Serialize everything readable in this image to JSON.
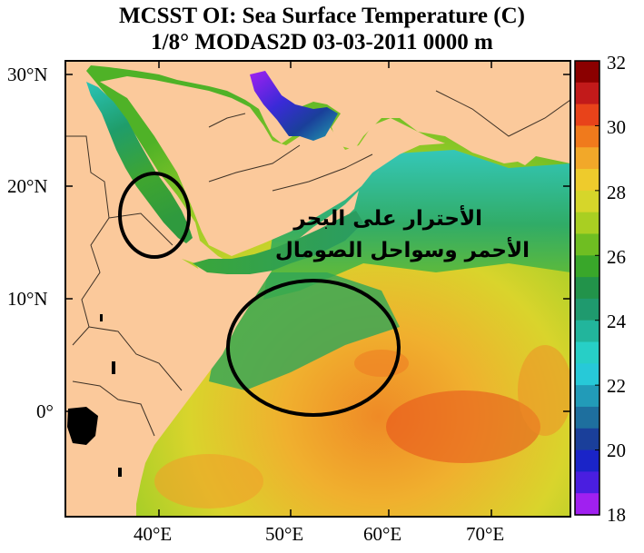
{
  "title": {
    "line1": "MCSST OI:  Sea Surface Temperature (C)",
    "line2": "1/8° MODAS2D 03-03-2011 0000 m"
  },
  "map": {
    "lat_labels": [
      "30°N",
      "20°N",
      "10°N",
      "0°"
    ],
    "lon_labels": [
      "40°E",
      "50°E",
      "60°E",
      "70°E"
    ]
  },
  "annotation": {
    "line1": "الأحترار على البحر",
    "line2": "الأحمر وسواحل الصومال"
  },
  "colorbar": {
    "ticks": [
      "32",
      "30",
      "28",
      "26",
      "24",
      "22",
      "20",
      "18"
    ],
    "min": 18,
    "max": 32,
    "colors": [
      "#8b0000",
      "#c21a1a",
      "#e8431a",
      "#f07a1c",
      "#f2a829",
      "#eecb2c",
      "#d6d62a",
      "#a9cf22",
      "#6fbe22",
      "#39a72a",
      "#22934a",
      "#1f9a6e",
      "#22b59c",
      "#27cfc6",
      "#27c9d8",
      "#229bb8",
      "#1e6f9e",
      "#1a3f9a",
      "#1a24c8",
      "#4a1ee0",
      "#a020f0"
    ]
  }
}
